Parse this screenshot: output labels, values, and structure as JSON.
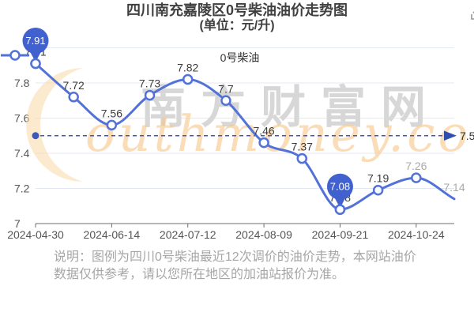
{
  "header": {
    "title_line1": "四川南充嘉陵区0号柴油油价走势图",
    "title_line2": "(单位：元/升)"
  },
  "legend": {
    "label": "0号柴油"
  },
  "watermark": {
    "gray_text": "南方财富网",
    "orange_text": "outhmoney.com"
  },
  "note": {
    "line1": "说明：图例为四川0号柴油最近12次调价的油价走势，本网站油价",
    "line2": "数据仅供参考，请以您所在地区的加油站报价为准。"
  },
  "colors": {
    "line": "#5272d8",
    "marker_fill": "#ffffff",
    "pin_fill": "#4161ce",
    "pin_text": "#ffffff",
    "ref_line": "#3b5ab8",
    "ref_arrow": "#2f4fae",
    "grid": "#e4e8f3",
    "axis": "#6e6e6e",
    "tick_label": "#555555",
    "data_label": "#3c3c3c",
    "muted_label": "#a9a9a9",
    "watermark_gray": "#d7d7d7",
    "watermark_orange": "#f7c78a"
  },
  "chart_data": {
    "type": "line",
    "series": [
      {
        "name": "0号柴油",
        "values": [
          7.91,
          7.72,
          7.56,
          7.73,
          7.82,
          7.7,
          7.46,
          7.37,
          7.08,
          7.19,
          7.26,
          7.14
        ]
      }
    ],
    "x_tick_labels": [
      "2024-04-30",
      "2024-06-14",
      "2024-07-12",
      "2024-08-09",
      "2024-09-21",
      "2024-10-24"
    ],
    "x_tick_indices": [
      0,
      2,
      4,
      6,
      8,
      10
    ],
    "y_tick_labels": [
      "7",
      "7.2",
      "7.4",
      "7.6",
      "7.8"
    ],
    "y_ticks": [
      7,
      7.2,
      7.4,
      7.6,
      7.8,
      8
    ],
    "ylim": [
      7,
      8
    ],
    "reference_line": {
      "value": 7.5,
      "label": "7.5"
    },
    "pinned_indices": [
      0,
      8
    ],
    "muted_label_indices": [
      10,
      11
    ],
    "last_point_marker": false,
    "grid": true,
    "legend_position": "top-center",
    "smooth": true
  }
}
